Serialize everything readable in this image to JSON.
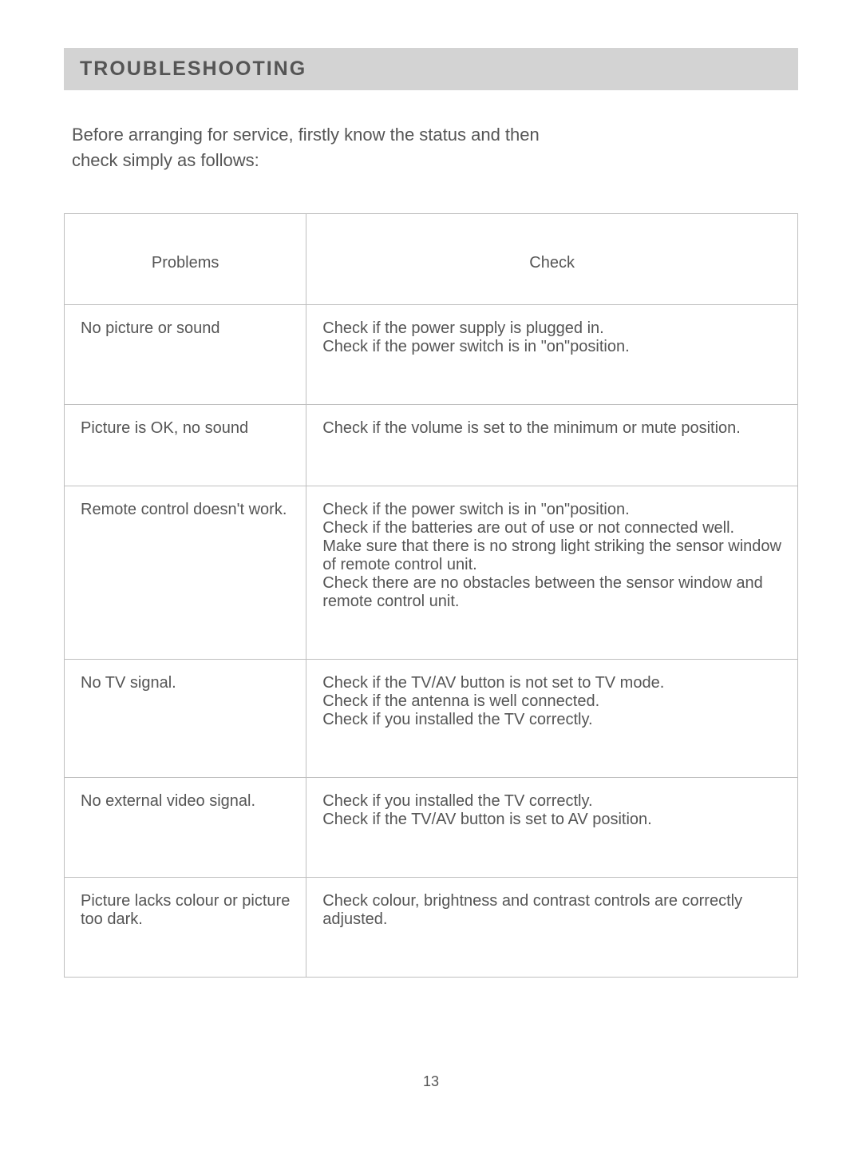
{
  "heading": "TROUBLESHOOTING",
  "intro_line1": "Before arranging for service, firstly know the status and then",
  "intro_line2": "check simply as follows:",
  "table": {
    "header_problems": "Problems",
    "header_check": "Check",
    "rows": [
      {
        "problem": "No picture or sound",
        "check": "Check if the power supply is plugged in.\nCheck if the power switch is in \"on\"position."
      },
      {
        "problem": "Picture is OK, no sound",
        "check": "Check if the volume is set to the minimum or mute position."
      },
      {
        "problem": "Remote control doesn't work.",
        "check": "Check if the power switch is in \"on\"position.\nCheck if the batteries are out of use or not connected well.\nMake sure that there is no strong light striking the sensor window of remote control unit.\nCheck there are no obstacles between the sensor window and remote control unit."
      },
      {
        "problem": "No TV signal.",
        "check": "Check if the TV/AV button is not set to TV mode.\nCheck if the antenna is well connected.\nCheck if you installed the TV correctly."
      },
      {
        "problem": "No external video signal.",
        "check": "Check if you installed the TV correctly.\nCheck if the TV/AV button is set to AV position."
      },
      {
        "problem": "Picture lacks colour or picture too dark.",
        "check": "Check colour, brightness and contrast controls are correctly adjusted."
      }
    ]
  },
  "page_number": "13"
}
